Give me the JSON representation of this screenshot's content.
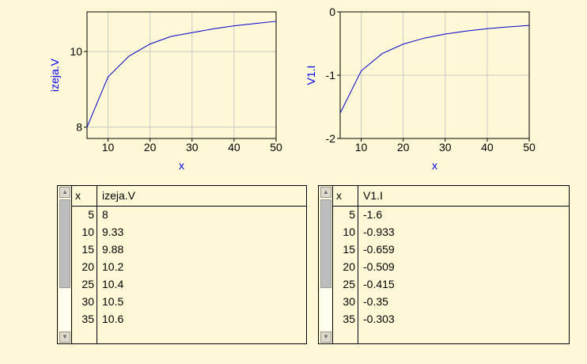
{
  "charts": [
    {
      "x": [
        5,
        10,
        15,
        20,
        25,
        30,
        35,
        40,
        45,
        50
      ],
      "y": [
        8,
        9.33,
        9.88,
        10.2,
        10.4,
        10.5,
        10.6,
        10.68,
        10.74,
        10.8
      ],
      "xlim": [
        5,
        50
      ],
      "ylim": [
        7.7,
        11.05
      ],
      "xticks": [
        10,
        20,
        30,
        40,
        50
      ],
      "yticks": [
        8,
        10
      ],
      "xlabel": "x",
      "ylabel": "izeja.V",
      "line_color": "#0000cc"
    },
    {
      "x": [
        5,
        10,
        15,
        20,
        25,
        30,
        35,
        40,
        45,
        50
      ],
      "y": [
        -1.6,
        -0.933,
        -0.659,
        -0.509,
        -0.415,
        -0.35,
        -0.303,
        -0.266,
        -0.237,
        -0.214
      ],
      "xlim": [
        5,
        50
      ],
      "ylim": [
        -2,
        0
      ],
      "xticks": [
        10,
        20,
        30,
        40,
        50
      ],
      "yticks": [
        0,
        -1,
        -2
      ],
      "xlabel": "x",
      "ylabel": "V1.I",
      "line_color": "#0000cc"
    }
  ],
  "chart_data": [
    {
      "type": "line",
      "x": [
        5,
        10,
        15,
        20,
        25,
        30,
        35,
        40,
        45,
        50
      ],
      "series": [
        {
          "name": "izeja.V",
          "values": [
            8,
            9.33,
            9.88,
            10.2,
            10.4,
            10.5,
            10.6,
            10.68,
            10.74,
            10.8
          ]
        }
      ],
      "xlabel": "x",
      "ylabel": "izeja.V",
      "xlim": [
        5,
        50
      ],
      "ylim": [
        7.7,
        11.05
      ],
      "grid": true
    },
    {
      "type": "line",
      "x": [
        5,
        10,
        15,
        20,
        25,
        30,
        35,
        40,
        45,
        50
      ],
      "series": [
        {
          "name": "V1.I",
          "values": [
            -1.6,
            -0.933,
            -0.659,
            -0.509,
            -0.415,
            -0.35,
            -0.303,
            -0.266,
            -0.237,
            -0.214
          ]
        }
      ],
      "xlabel": "x",
      "ylabel": "V1.I",
      "xlim": [
        5,
        50
      ],
      "ylim": [
        -2,
        0
      ],
      "grid": true
    },
    {
      "type": "table",
      "columns": [
        "x",
        "izeja.V"
      ],
      "rows": [
        [
          "5",
          "8"
        ],
        [
          "10",
          "9.33"
        ],
        [
          "15",
          "9.88"
        ],
        [
          "20",
          "10.2"
        ],
        [
          "25",
          "10.4"
        ],
        [
          "30",
          "10.5"
        ],
        [
          "35",
          "10.6"
        ]
      ]
    },
    {
      "type": "table",
      "columns": [
        "x",
        "V1.I"
      ],
      "rows": [
        [
          "5",
          "-1.6"
        ],
        [
          "10",
          "-0.933"
        ],
        [
          "15",
          "-0.659"
        ],
        [
          "20",
          "-0.509"
        ],
        [
          "25",
          "-0.415"
        ],
        [
          "30",
          "-0.35"
        ],
        [
          "35",
          "-0.303"
        ]
      ]
    }
  ],
  "tables": [
    {
      "columns": [
        "x",
        "izeja.V"
      ],
      "rows": [
        [
          "5",
          "8"
        ],
        [
          "10",
          "9.33"
        ],
        [
          "15",
          "9.88"
        ],
        [
          "20",
          "10.2"
        ],
        [
          "25",
          "10.4"
        ],
        [
          "30",
          "10.5"
        ],
        [
          "35",
          "10.6"
        ]
      ]
    },
    {
      "columns": [
        "x",
        "V1.I"
      ],
      "rows": [
        [
          "5",
          "-1.6"
        ],
        [
          "10",
          "-0.933"
        ],
        [
          "15",
          "-0.659"
        ],
        [
          "20",
          "-0.509"
        ],
        [
          "25",
          "-0.415"
        ],
        [
          "30",
          "-0.35"
        ],
        [
          "35",
          "-0.303"
        ]
      ]
    }
  ],
  "icons": {
    "scroll_up": "triangle-up-icon",
    "scroll_down": "triangle-down-icon"
  },
  "colors": {
    "background": "#fff8d6",
    "axis_label": "#0000ee",
    "grid": "#c8c8c8"
  }
}
